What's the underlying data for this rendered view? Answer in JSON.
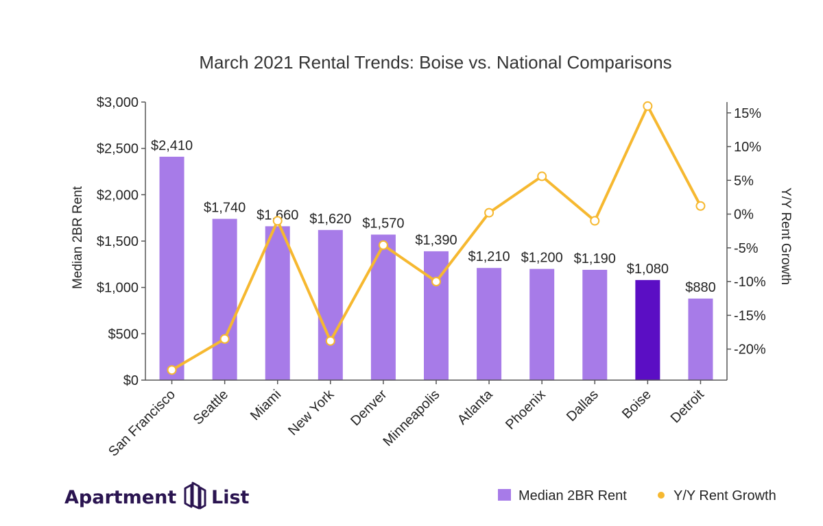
{
  "chart_data": {
    "type": "bar",
    "title": "March 2021 Rental Trends: Boise vs. National Comparisons",
    "categories": [
      "San Francisco",
      "Seattle",
      "Miami",
      "New York",
      "Denver",
      "Minneapolis",
      "Atlanta",
      "Phoenix",
      "Dallas",
      "Boise",
      "Detroit"
    ],
    "series": [
      {
        "name": "Median 2BR Rent",
        "type": "bar",
        "axis": "left",
        "values": [
          2410,
          1740,
          1660,
          1620,
          1570,
          1390,
          1210,
          1200,
          1190,
          1080,
          880
        ],
        "labels": [
          "$2,410",
          "$1,740",
          "$1,660",
          "$1,620",
          "$1,570",
          "$1,390",
          "$1,210",
          "$1,200",
          "$1,190",
          "$1,080",
          "$880"
        ],
        "color": "#a77be8",
        "highlight_color": "#5b0ec4",
        "highlight_category": "Boise"
      },
      {
        "name": "Y/Y Rent Growth",
        "type": "line",
        "axis": "right",
        "values": [
          -23.1,
          -18.5,
          -1.0,
          -18.8,
          -4.6,
          -10.0,
          0.2,
          5.6,
          -1.0,
          16.0,
          1.2
        ],
        "color": "#f6b830"
      }
    ],
    "ylabel": "Median 2BR Rent",
    "ylim": [
      0,
      3000
    ],
    "yticks": [
      "$0",
      "$500",
      "$1,000",
      "$1,500",
      "$2,000",
      "$2,500",
      "$3,000"
    ],
    "y2label": "Y/Y Rent Growth",
    "y2lim": [
      -24.6,
      16.6
    ],
    "y2ticks": [
      "-20%",
      "-15%",
      "-10%",
      "-5%",
      "0%",
      "5%",
      "10%",
      "15%"
    ],
    "legend_position": "bottom-right",
    "grid": false
  },
  "brand": {
    "name_left": "Apartment",
    "name_right": "List"
  }
}
